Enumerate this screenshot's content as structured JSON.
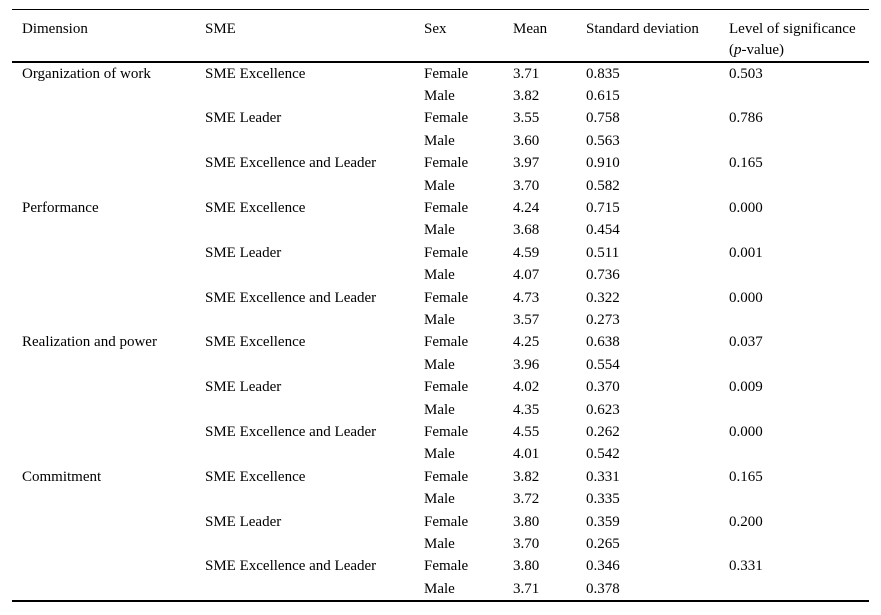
{
  "page": {
    "background": "#ffffff",
    "text_color": "#000000",
    "rule_color": "#000000"
  },
  "table": {
    "headers": {
      "dimension": "Dimension",
      "sme": "SME",
      "sex": "Sex",
      "mean": "Mean",
      "sd": "Standard deviation",
      "significance_line1": "Level of significance",
      "significance_open": "(",
      "significance_p": "p",
      "significance_rest": "-value)"
    },
    "sections": [
      {
        "dimension": "Organization of work",
        "groups": [
          {
            "sme": "SME Excellence",
            "rows": [
              [
                "Female",
                "3.71",
                "0.835",
                "0.503"
              ],
              [
                "Male",
                "3.82",
                "0.615",
                ""
              ]
            ]
          },
          {
            "sme": "SME Leader",
            "rows": [
              [
                "Female",
                "3.55",
                "0.758",
                "0.786"
              ],
              [
                "Male",
                "3.60",
                "0.563",
                ""
              ]
            ]
          },
          {
            "sme": "SME Excellence and Leader",
            "rows": [
              [
                "Female",
                "3.97",
                "0.910",
                "0.165"
              ],
              [
                "Male",
                "3.70",
                "0.582",
                ""
              ]
            ]
          }
        ]
      },
      {
        "dimension": "Performance",
        "groups": [
          {
            "sme": "SME Excellence",
            "rows": [
              [
                "Female",
                "4.24",
                "0.715",
                "0.000"
              ],
              [
                "Male",
                "3.68",
                "0.454",
                ""
              ]
            ]
          },
          {
            "sme": "SME Leader",
            "rows": [
              [
                "Female",
                "4.59",
                "0.511",
                "0.001"
              ],
              [
                "Male",
                "4.07",
                "0.736",
                ""
              ]
            ]
          },
          {
            "sme": "SME Excellence and Leader",
            "rows": [
              [
                "Female",
                "4.73",
                "0.322",
                "0.000"
              ],
              [
                "Male",
                "3.57",
                "0.273",
                ""
              ]
            ]
          }
        ]
      },
      {
        "dimension": "Realization and power",
        "groups": [
          {
            "sme": "SME Excellence",
            "rows": [
              [
                "Female",
                "4.25",
                "0.638",
                "0.037"
              ],
              [
                "Male",
                "3.96",
                "0.554",
                ""
              ]
            ]
          },
          {
            "sme": "SME Leader",
            "rows": [
              [
                "Female",
                "4.02",
                "0.370",
                "0.009"
              ],
              [
                "Male",
                "4.35",
                "0.623",
                ""
              ]
            ]
          },
          {
            "sme": "SME Excellence and Leader",
            "rows": [
              [
                "Female",
                "4.55",
                "0.262",
                "0.000"
              ],
              [
                "Male",
                "4.01",
                "0.542",
                ""
              ]
            ]
          }
        ]
      },
      {
        "dimension": "Commitment",
        "groups": [
          {
            "sme": "SME Excellence",
            "rows": [
              [
                "Female",
                "3.82",
                "0.331",
                "0.165"
              ],
              [
                "Male",
                "3.72",
                "0.335",
                ""
              ]
            ]
          },
          {
            "sme": "SME Leader",
            "rows": [
              [
                "Female",
                "3.80",
                "0.359",
                "0.200"
              ],
              [
                "Male",
                "3.70",
                "0.265",
                ""
              ]
            ]
          },
          {
            "sme": "SME Excellence and Leader",
            "rows": [
              [
                "Female",
                "3.80",
                "0.346",
                "0.331"
              ],
              [
                "Male",
                "3.71",
                "0.378",
                ""
              ]
            ]
          }
        ]
      }
    ]
  }
}
